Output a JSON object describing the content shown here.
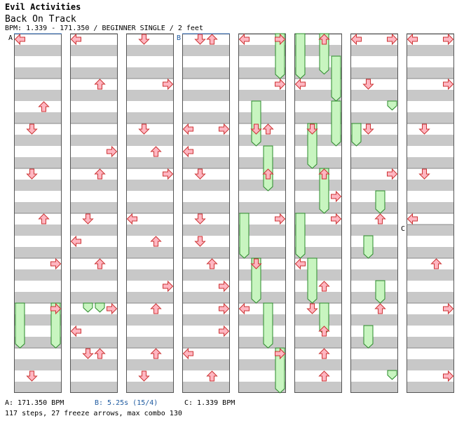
{
  "header": {
    "artist": "Evil Activities",
    "title": "Back On Track",
    "meta": "BPM: 1.339 - 171.350 / BEGINNER SINGLE / 2 feet"
  },
  "markers": [
    {
      "label": "A",
      "measure": 0
    },
    {
      "label": "B",
      "measure": 24
    },
    {
      "label": "C",
      "measure": 60.25
    }
  ],
  "footer": {
    "bpm_a": "A: 171.350 BPM",
    "stop_b": "B: 5.25s (15/4)",
    "bpm_c": "C: 1.339 BPM",
    "summary": "117 steps, 27 freeze arrows, max combo 130"
  },
  "colors": {
    "arrow_fill": "#ffb6c1",
    "arrow_stroke": "#cc3333",
    "freeze_fill": "#c8f5c0",
    "freeze_stroke": "#2a8a2a",
    "stripe": "#c8c8c8",
    "marker_line": "#3c78c8",
    "marker_text_b": "#1e5aa0"
  },
  "chart_data": {
    "type": "step-chart",
    "lanes": [
      "left",
      "down",
      "up",
      "right"
    ],
    "measures_per_column": 8,
    "columns": 8,
    "notes": [
      {
        "m": 0.0,
        "lane": "left"
      },
      {
        "m": 2.0,
        "lane": "down"
      },
      {
        "m": 4.0,
        "lane": "up"
      },
      {
        "m": 6.0,
        "lane": "right"
      },
      {
        "m": 8.0,
        "lane": "left"
      },
      {
        "m": 9.0,
        "lane": "up"
      },
      {
        "m": 11.0,
        "lane": "up"
      },
      {
        "m": 13.0,
        "lane": "up"
      },
      {
        "m": 14.0,
        "lane": "right"
      },
      {
        "m": 15.0,
        "lane": "down"
      },
      {
        "m": 15.0,
        "lane": "up"
      },
      {
        "m": 10.5,
        "lane": "right"
      },
      {
        "m": 12.0,
        "lane": "down"
      },
      {
        "m": 12.5,
        "lane": "left"
      },
      {
        "m": 14.5,
        "lane": "left"
      },
      {
        "m": 16.0,
        "lane": "down"
      },
      {
        "m": 17.0,
        "lane": "right"
      },
      {
        "m": 20.0,
        "lane": "left"
      },
      {
        "m": 21.5,
        "lane": "right"
      },
      {
        "m": 22.0,
        "lane": "up"
      },
      {
        "m": 23.0,
        "lane": "up"
      },
      {
        "m": 18.0,
        "lane": "down"
      },
      {
        "m": 23.5,
        "lane": "down"
      },
      {
        "m": 24.0,
        "lane": "down"
      },
      {
        "m": 24.0,
        "lane": "up"
      },
      {
        "m": 26.0,
        "lane": "left"
      },
      {
        "m": 26.0,
        "lane": "right"
      },
      {
        "m": 27.0,
        "lane": "down"
      },
      {
        "m": 28.0,
        "lane": "down"
      },
      {
        "m": 29.0,
        "lane": "up"
      },
      {
        "m": 30.0,
        "lane": "right"
      },
      {
        "m": 31.5,
        "lane": "up"
      },
      {
        "m": 26.5,
        "lane": "left"
      },
      {
        "m": 30.5,
        "lane": "right"
      },
      {
        "m": 32.0,
        "lane": "left"
      },
      {
        "m": 32.0,
        "lane": "right"
      },
      {
        "m": 34.0,
        "lane": "down"
      },
      {
        "m": 34.0,
        "lane": "up"
      },
      {
        "m": 36.0,
        "lane": "right"
      },
      {
        "m": 39.0,
        "lane": "right"
      },
      {
        "m": 40.0,
        "lane": "up"
      },
      {
        "m": 41.0,
        "lane": "left"
      },
      {
        "m": 42.0,
        "lane": "down"
      },
      {
        "m": 43.0,
        "lane": "up"
      },
      {
        "m": 43.5,
        "lane": "right"
      },
      {
        "m": 44.0,
        "lane": "right"
      },
      {
        "m": 45.0,
        "lane": "left"
      },
      {
        "m": 45.5,
        "lane": "up"
      },
      {
        "m": 46.0,
        "lane": "down"
      },
      {
        "m": 46.5,
        "lane": "up"
      },
      {
        "m": 47.0,
        "lane": "up"
      },
      {
        "m": 47.5,
        "lane": "up"
      },
      {
        "m": 48.0,
        "lane": "left"
      },
      {
        "m": 48.0,
        "lane": "right"
      },
      {
        "m": 49.0,
        "lane": "down"
      },
      {
        "m": 50.0,
        "lane": "down"
      },
      {
        "m": 51.0,
        "lane": "right"
      },
      {
        "m": 52.0,
        "lane": "up"
      },
      {
        "m": 54.0,
        "lane": "up"
      },
      {
        "m": 56.0,
        "lane": "left"
      },
      {
        "m": 56.0,
        "lane": "right"
      },
      {
        "m": 57.0,
        "lane": "right"
      },
      {
        "m": 58.0,
        "lane": "down"
      },
      {
        "m": 59.0,
        "lane": "down"
      },
      {
        "m": 60.0,
        "lane": "left"
      },
      {
        "m": 61.0,
        "lane": "up"
      },
      {
        "m": 62.0,
        "lane": "right"
      },
      {
        "m": 63.5,
        "lane": "right"
      },
      {
        "m": 1.5,
        "lane": "up"
      },
      {
        "m": 3.0,
        "lane": "down"
      },
      {
        "m": 5.0,
        "lane": "right"
      },
      {
        "m": 7.5,
        "lane": "down"
      },
      {
        "m": 33.0,
        "lane": "right"
      },
      {
        "m": 35.0,
        "lane": "up"
      },
      {
        "m": 37.0,
        "lane": "down"
      },
      {
        "m": 38.0,
        "lane": "left"
      },
      {
        "m": 18.5,
        "lane": "up"
      },
      {
        "m": 19.0,
        "lane": "right"
      },
      {
        "m": 20.5,
        "lane": "up"
      },
      {
        "m": 28.5,
        "lane": "down"
      },
      {
        "m": 29.5,
        "lane": "right"
      },
      {
        "m": 31.0,
        "lane": "left"
      }
    ],
    "freezes": [
      {
        "m": 6.0,
        "lane": "left",
        "len": 1.0
      },
      {
        "m": 6.0,
        "lane": "right",
        "len": 1.0
      },
      {
        "m": 14.0,
        "lane": "down",
        "len": 0.2
      },
      {
        "m": 14.0,
        "lane": "up",
        "len": 0.2
      },
      {
        "m": 32.0,
        "lane": "right",
        "len": 1.0
      },
      {
        "m": 33.5,
        "lane": "down",
        "len": 1.0
      },
      {
        "m": 34.5,
        "lane": "up",
        "len": 1.0
      },
      {
        "m": 36.0,
        "lane": "left",
        "len": 1.0
      },
      {
        "m": 37.0,
        "lane": "down",
        "len": 1.0
      },
      {
        "m": 38.0,
        "lane": "up",
        "len": 1.0
      },
      {
        "m": 39.0,
        "lane": "right",
        "len": 1.0
      },
      {
        "m": 40.0,
        "lane": "left",
        "len": 1.0
      },
      {
        "m": 41.5,
        "lane": "right",
        "len": 1.0
      },
      {
        "m": 42.0,
        "lane": "down",
        "len": 1.0
      },
      {
        "m": 43.0,
        "lane": "up",
        "len": 1.0
      },
      {
        "m": 44.0,
        "lane": "left",
        "len": 1.0
      },
      {
        "m": 45.0,
        "lane": "down",
        "len": 1.0
      },
      {
        "m": 46.0,
        "lane": "up",
        "len": 0.7
      },
      {
        "m": 40.0,
        "lane": "up",
        "len": 0.9
      },
      {
        "m": 40.5,
        "lane": "right",
        "len": 1.0
      },
      {
        "m": 49.5,
        "lane": "right",
        "len": 0.2
      },
      {
        "m": 50.0,
        "lane": "left",
        "len": 0.5
      },
      {
        "m": 51.5,
        "lane": "up",
        "len": 0.5
      },
      {
        "m": 52.5,
        "lane": "down",
        "len": 0.5
      },
      {
        "m": 53.5,
        "lane": "up",
        "len": 0.5
      },
      {
        "m": 54.5,
        "lane": "down",
        "len": 0.5
      },
      {
        "m": 55.5,
        "lane": "right",
        "len": 0.2
      }
    ]
  }
}
